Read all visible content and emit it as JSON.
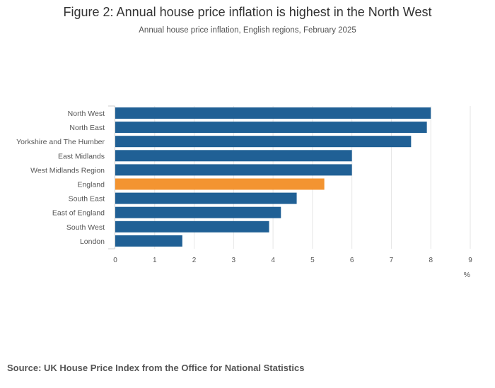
{
  "title": "Figure 2: Annual house price inflation is highest in the North West",
  "subtitle": "Annual house price inflation, English regions, February 2025",
  "source": "Source: UK House Price Index from the Office for National Statistics",
  "colors": {
    "bar": "#206095",
    "highlight": "#F39431",
    "gridline": "#e6e6e6",
    "axis": "#cccccc"
  },
  "chart_data": {
    "type": "bar",
    "orientation": "horizontal",
    "title": "Figure 2: Annual house price inflation is highest in the North West",
    "subtitle": "Annual house price inflation, English regions, February 2025",
    "xlabel": "%",
    "ylabel": "",
    "xlim": [
      0,
      9
    ],
    "xticks": [
      "0",
      "1",
      "2",
      "3",
      "4",
      "5",
      "6",
      "7",
      "8",
      "9"
    ],
    "grid": true,
    "categories": [
      "North West",
      "North East",
      "Yorkshire and The Humber",
      "East Midlands",
      "West Midlands Region",
      "England",
      "South East",
      "East of England",
      "South West",
      "London"
    ],
    "values": [
      8.0,
      7.9,
      7.5,
      6.0,
      6.0,
      5.3,
      4.6,
      4.2,
      3.9,
      1.7
    ],
    "highlight_category": "England"
  }
}
